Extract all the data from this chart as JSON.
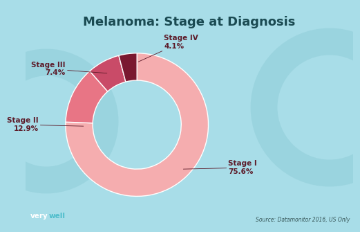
{
  "title": "Melanoma: Stage at Diagnosis",
  "stages": [
    "Stage I",
    "Stage II",
    "Stage III",
    "Stage IV"
  ],
  "values": [
    75.6,
    12.9,
    7.4,
    4.1
  ],
  "colors": [
    "#F5ADAF",
    "#E87585",
    "#C94B68",
    "#7A1830"
  ],
  "background_color": "#A8DDE8",
  "donut_width": 0.38,
  "start_angle": 90,
  "source_text": "Source: Datamonitor 2016, US Only",
  "brand_text_very": "very",
  "brand_text_well": "well",
  "title_fontsize": 13,
  "label_fontsize": 7.5,
  "source_fontsize": 5.5,
  "brand_fontsize": 7.5,
  "label_color": "#5C1A28",
  "title_color": "#1A4A52"
}
